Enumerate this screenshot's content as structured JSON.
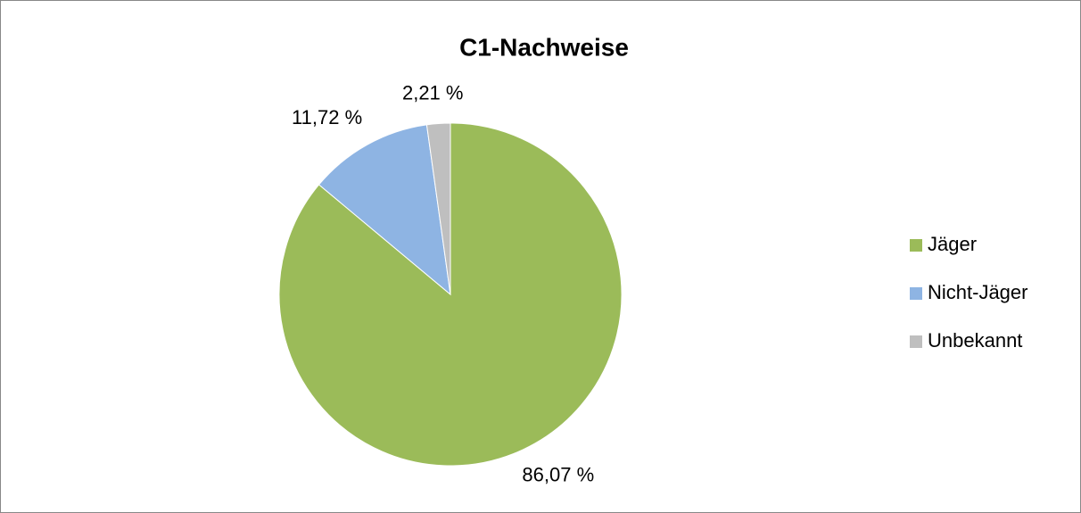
{
  "chart_data": {
    "type": "pie",
    "title": "C1-Nachweise",
    "categories": [
      "Jäger",
      "Nicht-Jäger",
      "Unbekannt"
    ],
    "values": [
      86.07,
      11.72,
      2.21
    ],
    "value_labels": [
      "86,07 %",
      "11,72 %",
      "2,21 %"
    ],
    "colors": [
      "#9bbb59",
      "#8eb4e3",
      "#bfbfbf"
    ],
    "legend": "right"
  }
}
